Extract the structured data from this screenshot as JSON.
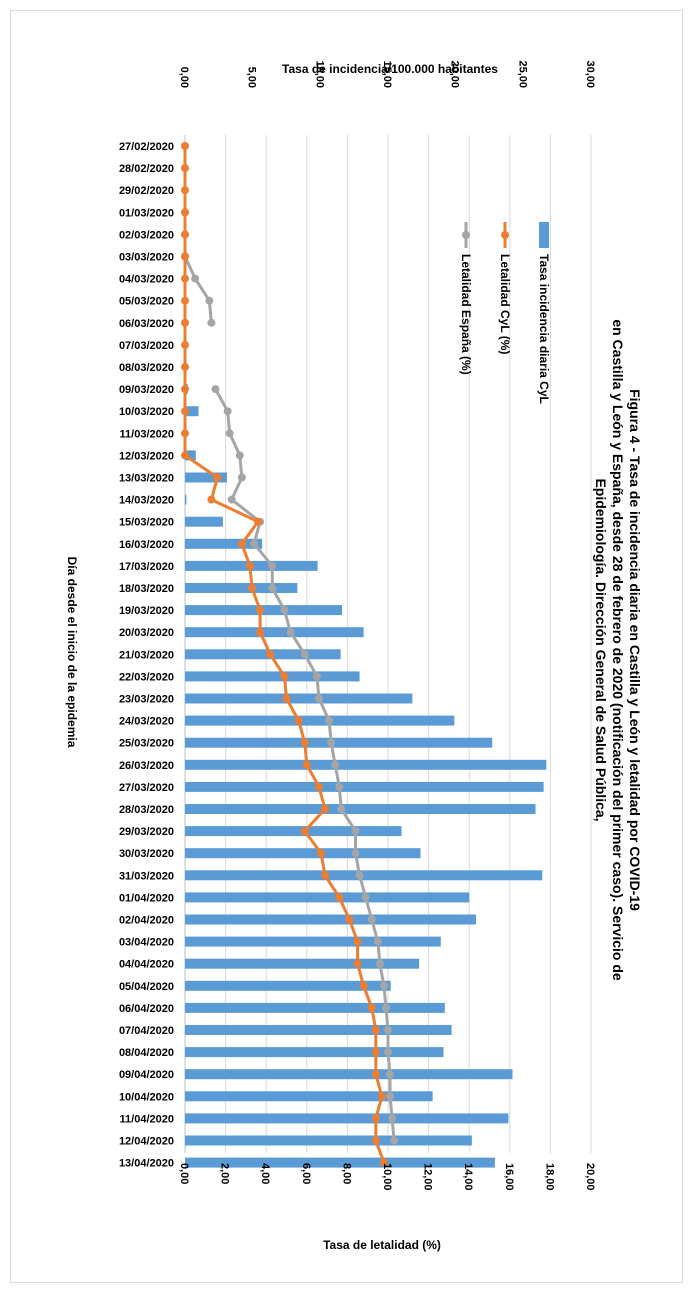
{
  "chart_data": {
    "type": "bar",
    "orientation": "horizontal",
    "title": "Figura 4 - Tasa de incidencia diaria en Castilla y León y letalidad por COVID-19 en Castilla y León y España, desde 28 de febrero de 2020 (notificación del primer caso). Servicio de Epidemiología. Dirección General de Salud Pública,",
    "title_lines": [
      "Figura 4 - Tasa de incidencia diaria en Castilla y León y letalidad por COVID-19",
      "en Castilla y León y España, desde 28 de febrero de 2020 (notificación del primer caso). Servicio de",
      "Epidemiología. Dirección General de Salud Pública,"
    ],
    "category_axis_label": "Día desde el inicio de la epidemia",
    "incidence_axis_label": "Tasa de incidencia/100.000 habitantes",
    "lethality_axis_label": "Tasa de letalidad (%)",
    "incidence_range": [
      0,
      30
    ],
    "incidence_ticks": [
      "0,00",
      "5,00",
      "10,00",
      "15,00",
      "20,00",
      "25,00",
      "30,00"
    ],
    "lethality_range": [
      0,
      20
    ],
    "lethality_ticks": [
      "0,00",
      "2,00",
      "4,00",
      "6,00",
      "8,00",
      "10,00",
      "12,00",
      "14,00",
      "16,00",
      "18,00",
      "20,00"
    ],
    "grid": true,
    "legend_position": "top-right",
    "categories": [
      "27/02/2020",
      "28/02/2020",
      "29/02/2020",
      "01/03/2020",
      "02/03/2020",
      "03/03/2020",
      "04/03/2020",
      "05/03/2020",
      "06/03/2020",
      "07/03/2020",
      "08/03/2020",
      "09/03/2020",
      "10/03/2020",
      "11/03/2020",
      "12/03/2020",
      "13/03/2020",
      "14/03/2020",
      "15/03/2020",
      "16/03/2020",
      "17/03/2020",
      "18/03/2020",
      "19/03/2020",
      "20/03/2020",
      "21/03/2020",
      "22/03/2020",
      "23/03/2020",
      "24/03/2020",
      "25/03/2020",
      "26/03/2020",
      "27/03/2020",
      "28/03/2020",
      "29/03/2020",
      "30/03/2020",
      "31/03/2020",
      "01/04/2020",
      "02/04/2020",
      "03/04/2020",
      "04/04/2020",
      "05/04/2020",
      "06/04/2020",
      "07/04/2020",
      "08/04/2020",
      "09/04/2020",
      "10/04/2020",
      "11/04/2020",
      "12/04/2020",
      "13/04/2020"
    ],
    "series": [
      {
        "name": "Tasa incidencia diaria CyL",
        "kind": "bar",
        "axis": "incidence",
        "color": "#5b9bd5",
        "values": [
          0,
          0,
          0,
          0,
          0,
          0,
          0,
          0,
          0,
          0,
          0.1,
          0.2,
          1.0,
          0.1,
          0.8,
          3.1,
          0.1,
          2.8,
          5.7,
          9.8,
          8.3,
          11.6,
          13.2,
          11.5,
          12.9,
          16.8,
          19.9,
          22.7,
          26.7,
          26.5,
          25.9,
          16.0,
          17.4,
          26.4,
          21.0,
          21.5,
          18.9,
          17.3,
          15.2,
          19.2,
          19.7,
          19.1,
          24.2,
          18.3,
          23.9,
          21.2,
          22.9
        ]
      },
      {
        "name": "Letalidad CyL (%)",
        "kind": "line",
        "axis": "lethality",
        "color": "#ed7d31",
        "values": [
          0,
          0,
          0,
          0,
          0,
          0,
          0,
          0,
          0,
          0,
          0,
          0,
          0,
          0,
          0,
          1.6,
          1.3,
          3.6,
          2.8,
          3.2,
          3.3,
          3.7,
          3.7,
          4.2,
          4.9,
          5.0,
          5.6,
          5.9,
          6.0,
          6.6,
          6.9,
          5.9,
          6.7,
          6.9,
          7.6,
          8.1,
          8.5,
          8.5,
          8.8,
          9.2,
          9.4,
          9.4,
          9.4,
          9.7,
          9.4,
          9.4,
          9.8
        ]
      },
      {
        "name": "Letalidad España (%)",
        "kind": "line",
        "axis": "lethality",
        "color": "#a5a5a5",
        "values": [
          null,
          0,
          null,
          0,
          0,
          0,
          0.5,
          1.2,
          1.3,
          null,
          null,
          1.5,
          2.1,
          2.2,
          2.7,
          2.8,
          2.3,
          3.7,
          3.4,
          4.3,
          4.3,
          4.9,
          5.2,
          5.9,
          6.5,
          6.6,
          7.1,
          7.2,
          7.4,
          7.6,
          7.7,
          8.4,
          8.4,
          8.6,
          8.9,
          9.2,
          9.5,
          9.6,
          9.8,
          9.9,
          10.0,
          10.0,
          10.1,
          10.1,
          10.2,
          10.3,
          null
        ]
      }
    ]
  }
}
